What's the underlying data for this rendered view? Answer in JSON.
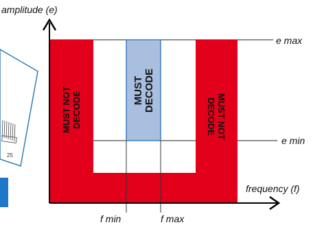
{
  "axes": {
    "y_label": "amplitude (e)",
    "x_label": "frequency (f)",
    "e_max": "e max",
    "e_min": "e min",
    "f_min": "f min",
    "f_max": "f max"
  },
  "zones": {
    "left": [
      "MUST NOT",
      "DECODE"
    ],
    "middle": [
      "MUST",
      "DECODE"
    ],
    "right": [
      "MUST NOT",
      "DECODE"
    ]
  },
  "book_page_number": "25",
  "colors": {
    "reject": "#E2001A",
    "accept": "#A8BFE0",
    "accept_border": "#3F7FBF",
    "book_border": "#2E7DB5",
    "blue_bar": "#1F77C9"
  }
}
